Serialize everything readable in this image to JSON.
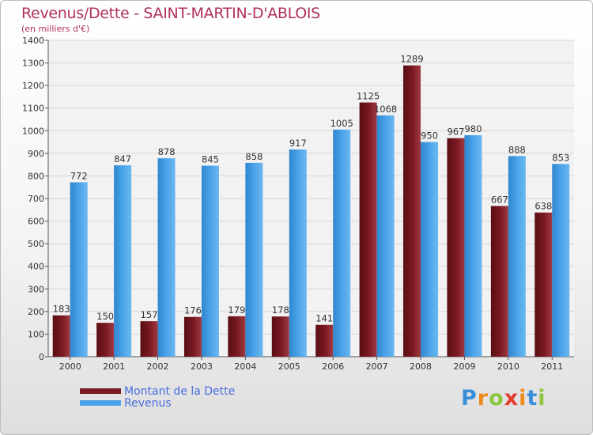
{
  "chart_data": {
    "type": "bar",
    "title": "Revenus/Dette - SAINT-MARTIN-D'ABLOIS",
    "subtitle": "(en milliers d'€)",
    "categories": [
      "2000",
      "2001",
      "2002",
      "2003",
      "2004",
      "2005",
      "2006",
      "2007",
      "2008",
      "2009",
      "2010",
      "2011"
    ],
    "series": [
      {
        "name": "Montant de la Dette",
        "values": [
          183,
          150,
          157,
          176,
          179,
          178,
          141,
          1125,
          1289,
          967,
          667,
          638
        ],
        "color": "#7b1a22"
      },
      {
        "name": "Revenus",
        "values": [
          772,
          847,
          878,
          845,
          858,
          917,
          1005,
          1068,
          950,
          980,
          888,
          853
        ],
        "color": "#4aa3e8"
      }
    ],
    "ylim": [
      0,
      1400
    ],
    "yticks": [
      0,
      100,
      200,
      300,
      400,
      500,
      600,
      700,
      800,
      900,
      1000,
      1100,
      1200,
      1300,
      1400
    ],
    "grid": true,
    "legend_position": "bottom-left"
  },
  "logo": {
    "letters": [
      "P",
      "r",
      "o",
      "x",
      "i",
      "t",
      "i"
    ],
    "colors": [
      "#3b8fd9",
      "#f08a1c",
      "#8cc63e",
      "#e63c2e",
      "#f08a1c",
      "#3b8fd9",
      "#8cc63e"
    ]
  }
}
